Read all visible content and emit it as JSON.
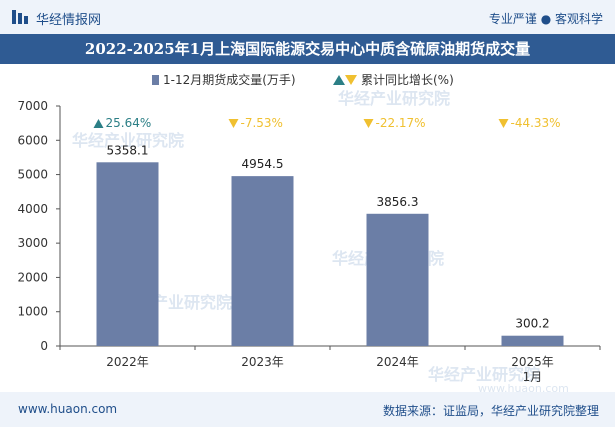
{
  "header": {
    "brand": "华经情报网",
    "tagline": "专业严谨 ● 客观科学"
  },
  "title": "2022-2025年1月上海国际能源交易中心中质含硫原油期货成交量",
  "legend": {
    "bar_label": "1-12月期货成交量(万手)",
    "growth_label": "累计同比增长(%)"
  },
  "watermark": "华经产业研究院",
  "watermark_url": "www.huaon.com",
  "footer": {
    "url": "www.huaon.com",
    "source": "数据来源：证监局，华经产业研究院整理"
  },
  "colors": {
    "bar": "#6b7ea6",
    "up": "#2c7f86",
    "down": "#f0c030",
    "title_bg": "#2f5b93",
    "band_bg": "#eef3fa"
  },
  "chart_data": {
    "type": "bar",
    "categories": [
      "2022年",
      "2023年",
      "2024年",
      "2025年1月"
    ],
    "category_lines": [
      [
        "2022年"
      ],
      [
        "2023年"
      ],
      [
        "2024年"
      ],
      [
        "2025年",
        "1月"
      ]
    ],
    "series": [
      {
        "name": "1-12月期货成交量(万手)",
        "values": [
          5358.1,
          4954.5,
          3856.3,
          300.2
        ]
      }
    ],
    "value_labels": [
      "5358.1",
      "4954.5",
      "3856.3",
      "300.2"
    ],
    "growth": {
      "name": "累计同比增长(%)",
      "values": [
        25.64,
        -7.53,
        -22.17,
        -44.33
      ],
      "labels": [
        "25.64%",
        "-7.53%",
        "-22.17%",
        "-44.33%"
      ]
    },
    "ylim": [
      0,
      7000
    ],
    "yticks": [
      0,
      1000,
      2000,
      3000,
      4000,
      5000,
      6000,
      7000
    ],
    "legend_position": "top",
    "grid": false
  }
}
